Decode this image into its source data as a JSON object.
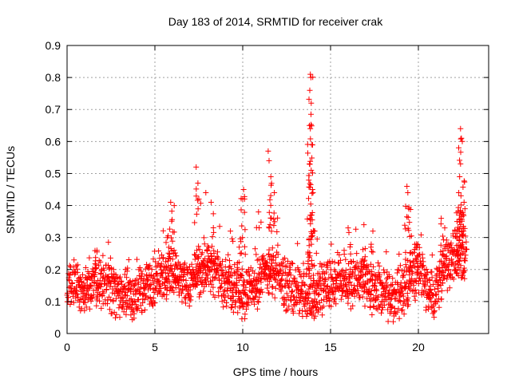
{
  "chart_data": {
    "type": "scatter",
    "title": "Day 183 of 2014, SRMTID for receiver crak",
    "xlabel": "GPS time / hours",
    "ylabel": "SRMTID / TECUs",
    "xlim": [
      0,
      24
    ],
    "ylim": [
      0,
      0.9
    ],
    "xticks": [
      0,
      5,
      10,
      15,
      20
    ],
    "yticks": [
      0,
      0.1,
      0.2,
      0.3,
      0.4,
      0.5,
      0.6,
      0.7,
      0.8,
      0.9
    ],
    "grid": true,
    "marker": "+",
    "color": "#ff0000",
    "baseline": [
      [
        0,
        0.15
      ],
      [
        0.5,
        0.14
      ],
      [
        1,
        0.13
      ],
      [
        1.5,
        0.15
      ],
      [
        2,
        0.16
      ],
      [
        2.5,
        0.14
      ],
      [
        3,
        0.12
      ],
      [
        3.5,
        0.12
      ],
      [
        4,
        0.13
      ],
      [
        4.5,
        0.14
      ],
      [
        5,
        0.16
      ],
      [
        5.5,
        0.18
      ],
      [
        6,
        0.2
      ],
      [
        6.5,
        0.17
      ],
      [
        7,
        0.15
      ],
      [
        7.5,
        0.19
      ],
      [
        8,
        0.2
      ],
      [
        8.5,
        0.18
      ],
      [
        9,
        0.16
      ],
      [
        9.5,
        0.15
      ],
      [
        10,
        0.12
      ],
      [
        10.5,
        0.14
      ],
      [
        11,
        0.17
      ],
      [
        11.5,
        0.2
      ],
      [
        12,
        0.18
      ],
      [
        12.5,
        0.15
      ],
      [
        13,
        0.13
      ],
      [
        13.5,
        0.12
      ],
      [
        14,
        0.11
      ],
      [
        14.5,
        0.14
      ],
      [
        15,
        0.16
      ],
      [
        15.5,
        0.17
      ],
      [
        16,
        0.16
      ],
      [
        16.5,
        0.17
      ],
      [
        17,
        0.16
      ],
      [
        17.5,
        0.14
      ],
      [
        18,
        0.13
      ],
      [
        18.5,
        0.11
      ],
      [
        19,
        0.12
      ],
      [
        19.5,
        0.17
      ],
      [
        20,
        0.2
      ],
      [
        20.5,
        0.14
      ],
      [
        21,
        0.13
      ],
      [
        21.5,
        0.2
      ],
      [
        22,
        0.23
      ],
      [
        22.5,
        0.25
      ],
      [
        22.7,
        0.22
      ]
    ],
    "spikes": [
      {
        "x": 1.7,
        "y": 0.26
      },
      {
        "x": 5.7,
        "y": 0.3
      },
      {
        "x": 5.9,
        "y": 0.41
      },
      {
        "x": 6.1,
        "y": 0.4
      },
      {
        "x": 7.35,
        "y": 0.52
      },
      {
        "x": 7.45,
        "y": 0.47
      },
      {
        "x": 7.5,
        "y": 0.42
      },
      {
        "x": 7.9,
        "y": 0.44
      },
      {
        "x": 8.2,
        "y": 0.41
      },
      {
        "x": 9.3,
        "y": 0.32
      },
      {
        "x": 9.8,
        "y": 0.27
      },
      {
        "x": 10.05,
        "y": 0.45
      },
      {
        "x": 10.0,
        "y": 0.42
      },
      {
        "x": 10.9,
        "y": 0.38
      },
      {
        "x": 11.45,
        "y": 0.57
      },
      {
        "x": 11.5,
        "y": 0.54
      },
      {
        "x": 11.6,
        "y": 0.49
      },
      {
        "x": 11.8,
        "y": 0.44
      },
      {
        "x": 13.85,
        "y": 0.81
      },
      {
        "x": 13.88,
        "y": 0.8
      },
      {
        "x": 13.82,
        "y": 0.76
      },
      {
        "x": 13.9,
        "y": 0.72
      },
      {
        "x": 13.8,
        "y": 0.65
      },
      {
        "x": 13.85,
        "y": 0.64
      },
      {
        "x": 13.92,
        "y": 0.59
      },
      {
        "x": 13.8,
        "y": 0.53
      },
      {
        "x": 13.9,
        "y": 0.51
      },
      {
        "x": 14.0,
        "y": 0.44
      },
      {
        "x": 14.1,
        "y": 0.32
      },
      {
        "x": 16.0,
        "y": 0.33
      },
      {
        "x": 16.9,
        "y": 0.34
      },
      {
        "x": 17.3,
        "y": 0.27
      },
      {
        "x": 19.35,
        "y": 0.46
      },
      {
        "x": 19.4,
        "y": 0.44
      },
      {
        "x": 19.45,
        "y": 0.39
      },
      {
        "x": 19.9,
        "y": 0.28
      },
      {
        "x": 21.3,
        "y": 0.36
      },
      {
        "x": 21.5,
        "y": 0.33
      },
      {
        "x": 22.2,
        "y": 0.35
      },
      {
        "x": 22.4,
        "y": 0.64
      },
      {
        "x": 22.45,
        "y": 0.61
      },
      {
        "x": 22.5,
        "y": 0.6
      },
      {
        "x": 22.4,
        "y": 0.53
      },
      {
        "x": 22.35,
        "y": 0.49
      },
      {
        "x": 22.3,
        "y": 0.44
      },
      {
        "x": 22.6,
        "y": 0.41
      },
      {
        "x": 22.65,
        "y": 0.39
      }
    ],
    "point_count": 1900
  }
}
